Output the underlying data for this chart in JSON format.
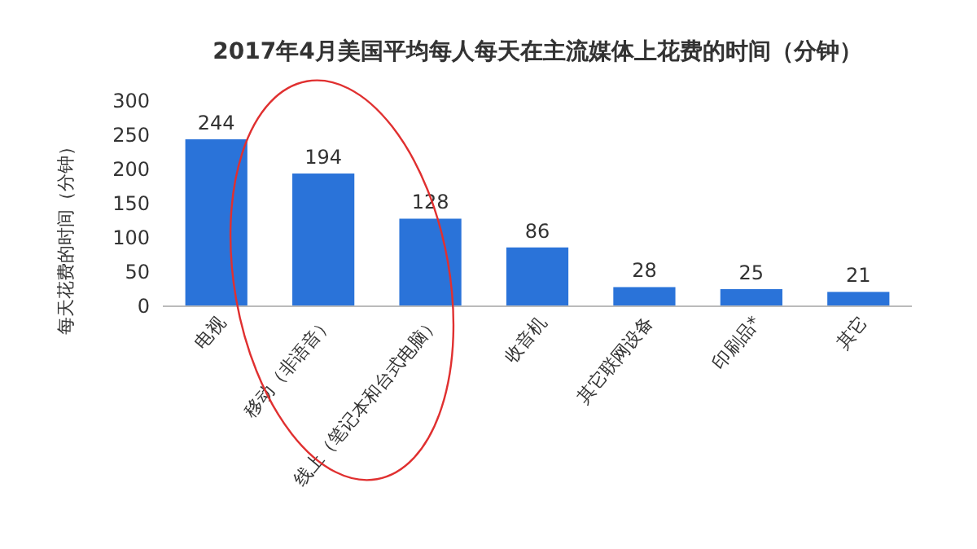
{
  "chart_data": {
    "type": "bar",
    "title": "2017年4月美国平均每人每天在主流媒体上花费的时间（分钟）",
    "ylabel": "每天花费的时间（分钟）",
    "categories": [
      "电视",
      "移动（非语音）",
      "线上（笔记本和台式电脑）",
      "收音机",
      "其它联网设备",
      "印刷品*",
      "其它"
    ],
    "values": [
      244,
      194,
      128,
      86,
      28,
      25,
      21
    ],
    "color": "#2a73d9",
    "ylim": [
      0,
      300
    ],
    "yticks": [
      0,
      50,
      100,
      150,
      200,
      250,
      300
    ],
    "data_labels": true
  }
}
